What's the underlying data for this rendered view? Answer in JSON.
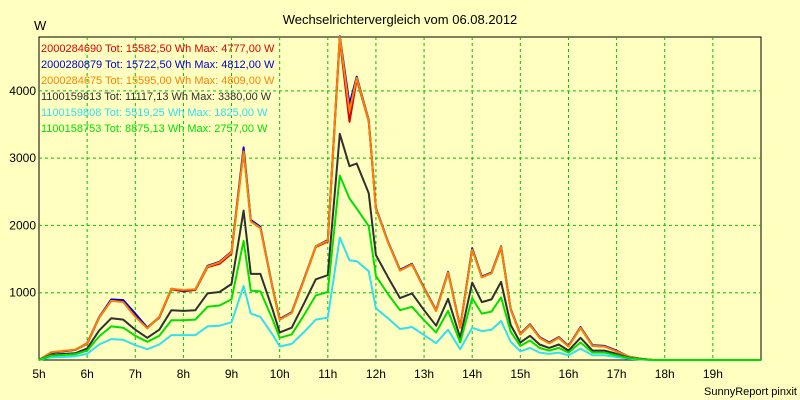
{
  "footer": "SunnyReport pinxit",
  "chart_data": {
    "type": "line",
    "title": "Wechselrichtervergleich vom 06.08.2012",
    "ylabel": "W",
    "xlabel": "",
    "ylim": [
      0,
      4800
    ],
    "xlim": [
      5,
      20
    ],
    "yticks": [
      1000,
      2000,
      3000,
      4000
    ],
    "xticks": [
      5,
      6,
      7,
      8,
      9,
      10,
      11,
      12,
      13,
      14,
      15,
      16,
      17,
      18,
      19
    ],
    "xtick_labels": [
      "5h",
      "6h",
      "7h",
      "8h",
      "9h",
      "10h",
      "11h",
      "12h",
      "13h",
      "14h",
      "15h",
      "16h",
      "17h",
      "18h",
      "19h"
    ],
    "grid": true,
    "legend_position": "top-left",
    "x": [
      5.0,
      5.25,
      5.5,
      5.75,
      6.0,
      6.25,
      6.5,
      6.75,
      7.0,
      7.25,
      7.5,
      7.75,
      8.0,
      8.25,
      8.5,
      8.75,
      9.0,
      9.25,
      9.4,
      9.6,
      9.85,
      10.0,
      10.25,
      10.5,
      10.75,
      11.0,
      11.25,
      11.45,
      11.6,
      11.85,
      12.0,
      12.25,
      12.5,
      12.75,
      13.0,
      13.25,
      13.5,
      13.75,
      14.0,
      14.2,
      14.4,
      14.6,
      14.8,
      15.0,
      15.2,
      15.4,
      15.6,
      15.8,
      16.0,
      16.25,
      16.5,
      16.75,
      17.0,
      17.25,
      17.5,
      17.75,
      18.0,
      18.25,
      18.5,
      18.75,
      19.0,
      19.25,
      19.5,
      19.75,
      20.0
    ],
    "series": [
      {
        "name": "2000284690 Tot: 15582,50 Wh Max: 4777,00 W",
        "color": "#e00000",
        "values": [
          0,
          110,
          130,
          150,
          240,
          630,
          880,
          880,
          680,
          480,
          630,
          1050,
          1020,
          1040,
          1380,
          1430,
          1580,
          3120,
          2060,
          1960,
          1080,
          600,
          700,
          1180,
          1680,
          1760,
          4770,
          3540,
          4170,
          3550,
          2250,
          1750,
          1330,
          1420,
          1060,
          730,
          1300,
          480,
          1650,
          1230,
          1290,
          1670,
          750,
          380,
          520,
          330,
          250,
          330,
          200,
          480,
          210,
          200,
          130,
          50,
          20,
          0,
          0,
          0,
          0,
          0,
          0,
          0,
          0,
          0,
          0
        ]
      },
      {
        "name": "2000280879 Tot: 15722,50 Wh Max: 4812,00 W",
        "color": "#0000d0",
        "values": [
          0,
          110,
          130,
          150,
          250,
          640,
          900,
          890,
          690,
          480,
          640,
          1060,
          1030,
          1050,
          1400,
          1460,
          1610,
          3160,
          2080,
          1980,
          1090,
          610,
          710,
          1190,
          1690,
          1780,
          4810,
          3800,
          4210,
          3570,
          2260,
          1760,
          1340,
          1430,
          1070,
          740,
          1310,
          490,
          1660,
          1240,
          1300,
          1690,
          760,
          390,
          530,
          340,
          260,
          340,
          210,
          490,
          220,
          210,
          140,
          50,
          20,
          0,
          0,
          0,
          0,
          0,
          0,
          0,
          0,
          0,
          0
        ]
      },
      {
        "name": "2000284675 Tot: 15595,00 Wh Max: 4809,00 W",
        "color": "#ff8000",
        "values": [
          0,
          115,
          135,
          155,
          245,
          635,
          880,
          860,
          640,
          470,
          640,
          1060,
          1040,
          1050,
          1390,
          1450,
          1600,
          3100,
          2060,
          1960,
          1080,
          600,
          700,
          1180,
          1690,
          1770,
          4800,
          3700,
          4190,
          3560,
          2250,
          1750,
          1330,
          1420,
          1060,
          730,
          1300,
          480,
          1640,
          1230,
          1290,
          1680,
          750,
          380,
          520,
          330,
          250,
          330,
          200,
          480,
          210,
          200,
          130,
          50,
          20,
          0,
          0,
          0,
          0,
          0,
          0,
          0,
          0,
          0,
          0
        ]
      },
      {
        "name": "1100159813 Tot: 11117,13 Wh Max: 3380,00 W",
        "color": "#303030",
        "values": [
          0,
          80,
          90,
          100,
          170,
          440,
          620,
          600,
          450,
          330,
          450,
          740,
          730,
          740,
          990,
          1010,
          1130,
          2220,
          1280,
          1280,
          760,
          410,
          480,
          830,
          1200,
          1260,
          3360,
          2880,
          2920,
          2480,
          1560,
          1230,
          920,
          990,
          740,
          510,
          910,
          330,
          1150,
          860,
          900,
          1160,
          520,
          260,
          360,
          230,
          180,
          230,
          140,
          330,
          140,
          140,
          90,
          35,
          15,
          0,
          0,
          0,
          0,
          0,
          0,
          0,
          0,
          0,
          0
        ]
      },
      {
        "name": "1100159808 Tot: 5519,25 Wh Max: 1825,00 W",
        "color": "#30e0f0",
        "values": [
          0,
          40,
          45,
          55,
          90,
          230,
          310,
          300,
          220,
          160,
          230,
          370,
          370,
          370,
          500,
          510,
          560,
          1100,
          690,
          640,
          380,
          200,
          240,
          410,
          600,
          630,
          1820,
          1480,
          1470,
          1320,
          770,
          620,
          460,
          490,
          370,
          250,
          450,
          160,
          480,
          430,
          450,
          580,
          270,
          130,
          180,
          110,
          90,
          110,
          70,
          170,
          70,
          70,
          45,
          18,
          8,
          0,
          0,
          0,
          0,
          0,
          0,
          0,
          0,
          0,
          0
        ]
      },
      {
        "name": "1100158753 Tot: 8875,13 Wh Max: 2757,00 W",
        "color": "#00e000",
        "values": [
          0,
          65,
          75,
          85,
          140,
          350,
          500,
          480,
          360,
          270,
          360,
          590,
          590,
          600,
          790,
          810,
          900,
          1770,
          1030,
          1020,
          610,
          330,
          380,
          660,
          960,
          1010,
          2740,
          2400,
          2250,
          1990,
          1250,
          980,
          740,
          790,
          590,
          410,
          730,
          260,
          920,
          690,
          720,
          930,
          420,
          210,
          290,
          180,
          140,
          180,
          110,
          260,
          110,
          110,
          70,
          28,
          12,
          0,
          0,
          0,
          0,
          0,
          0,
          0,
          0,
          0,
          0
        ]
      }
    ]
  }
}
